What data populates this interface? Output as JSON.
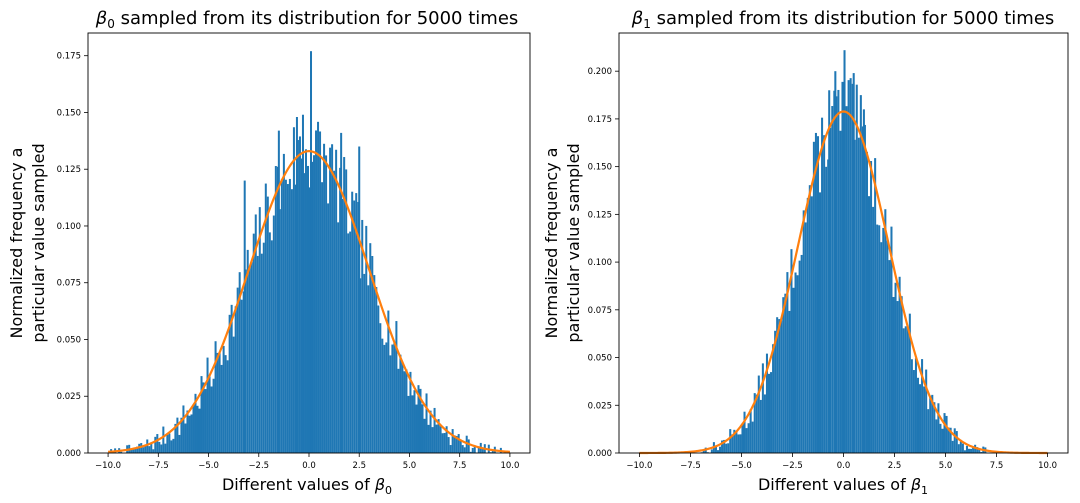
{
  "figure": {
    "colors": {
      "bar": "#1f77b4",
      "curve": "#ff7f0e",
      "axis": "#000000"
    }
  },
  "chart_data": [
    {
      "type": "bar",
      "title_symbol": "β",
      "title_sub": "0",
      "title_rest": " sampled from its distribution for 5000 times",
      "xlabel": "Different values of ",
      "xlabel_symbol": "β",
      "xlabel_sub": "0",
      "ylabel_line1": "Normalized frequency a",
      "ylabel_line2": "particular value sampled",
      "xlim": [
        -11.0,
        11.0
      ],
      "ylim": [
        0,
        0.185
      ],
      "xticks": [
        -10.0,
        -7.5,
        -5.0,
        -2.5,
        0.0,
        2.5,
        5.0,
        7.5,
        10.0
      ],
      "xtick_labels": [
        "−10.0",
        "−7.5",
        "−5.0",
        "−2.5",
        "0.0",
        "2.5",
        "5.0",
        "7.5",
        "10.0"
      ],
      "yticks": [
        0.0,
        0.025,
        0.05,
        0.075,
        0.1,
        0.125,
        0.15,
        0.175
      ],
      "ytick_labels": [
        "0.000",
        "0.025",
        "0.050",
        "0.075",
        "0.100",
        "0.125",
        "0.150",
        "0.175"
      ],
      "histogram": {
        "bin_start": -10.0,
        "bin_end": 10.0,
        "bins": 200,
        "noise_amplitude": 0.02,
        "seed": 7
      },
      "curve": {
        "type": "normal-pdf",
        "mean": 0.0,
        "std": 3.0,
        "x_range": [
          -10.0,
          10.0
        ]
      },
      "highlighted_bins": [
        {
          "x": 0.1,
          "value": 0.177
        },
        {
          "x": -0.6,
          "value": 0.148
        },
        {
          "x": -0.3,
          "value": 0.149
        },
        {
          "x": -1.5,
          "value": 0.142
        },
        {
          "x": 1.6,
          "value": 0.141
        },
        {
          "x": -3.2,
          "value": 0.12
        },
        {
          "x": 2.5,
          "value": 0.135
        }
      ]
    },
    {
      "type": "bar",
      "title_symbol": "β",
      "title_sub": "1",
      "title_rest": " sampled from its distribution for 5000 times",
      "xlabel": "Different values of ",
      "xlabel_symbol": "β",
      "xlabel_sub": "1",
      "ylabel_line1": "Normalized frequency a",
      "ylabel_line2": "particular value sampled",
      "xlim": [
        -11.0,
        11.0
      ],
      "ylim": [
        0,
        0.22
      ],
      "xticks": [
        -10.0,
        -7.5,
        -5.0,
        -2.5,
        0.0,
        2.5,
        5.0,
        7.5,
        10.0
      ],
      "xtick_labels": [
        "−10.0",
        "−7.5",
        "−5.0",
        "−2.5",
        "0.0",
        "2.5",
        "5.0",
        "7.5",
        "10.0"
      ],
      "yticks": [
        0.0,
        0.025,
        0.05,
        0.075,
        0.1,
        0.125,
        0.15,
        0.175,
        0.2
      ],
      "ytick_labels": [
        "0.000",
        "0.025",
        "0.050",
        "0.075",
        "0.100",
        "0.125",
        "0.150",
        "0.175",
        "0.200"
      ],
      "histogram": {
        "bin_start": -7.0,
        "bin_end": 7.0,
        "bins": 140,
        "noise_amplitude": 0.022,
        "seed": 13
      },
      "curve": {
        "type": "normal-pdf",
        "mean": 0.0,
        "std": 2.23,
        "x_range": [
          -10.0,
          10.0
        ]
      },
      "highlighted_bins": [
        {
          "x": 0.05,
          "value": 0.211
        },
        {
          "x": -0.4,
          "value": 0.2
        },
        {
          "x": 0.5,
          "value": 0.199
        },
        {
          "x": -0.7,
          "value": 0.19
        },
        {
          "x": 1.0,
          "value": 0.18
        }
      ]
    }
  ]
}
